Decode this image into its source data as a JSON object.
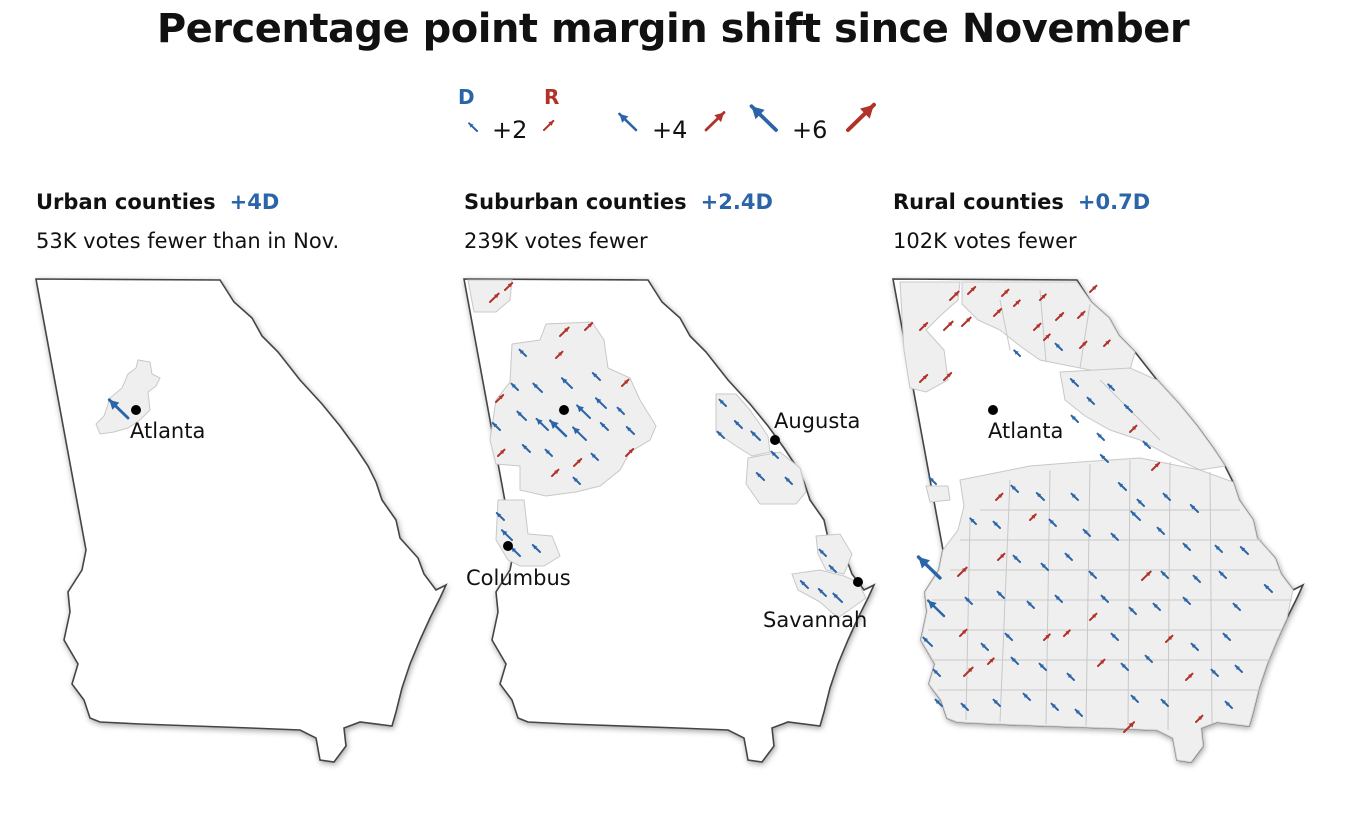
{
  "title": "Percentage point margin shift since November",
  "legend": {
    "d_label": "D",
    "r_label": "R",
    "steps": [
      "+2",
      "+4",
      "+6"
    ],
    "colors": {
      "d": "#2b65a8",
      "r": "#b03228"
    }
  },
  "panels": [
    {
      "heading": "Urban counties",
      "shift": "+4D",
      "subtitle": "53K votes fewer than in Nov.",
      "cities": [
        {
          "name": "Atlanta"
        }
      ]
    },
    {
      "heading": "Suburban counties",
      "shift": "+2.4D",
      "subtitle": "239K votes fewer",
      "cities": [
        {
          "name": "Augusta"
        },
        {
          "name": "Columbus"
        },
        {
          "name": "Savannah"
        }
      ]
    },
    {
      "heading": "Rural counties",
      "shift": "+0.7D",
      "subtitle": "102K votes fewer",
      "cities": [
        {
          "name": "Atlanta"
        }
      ]
    }
  ]
}
